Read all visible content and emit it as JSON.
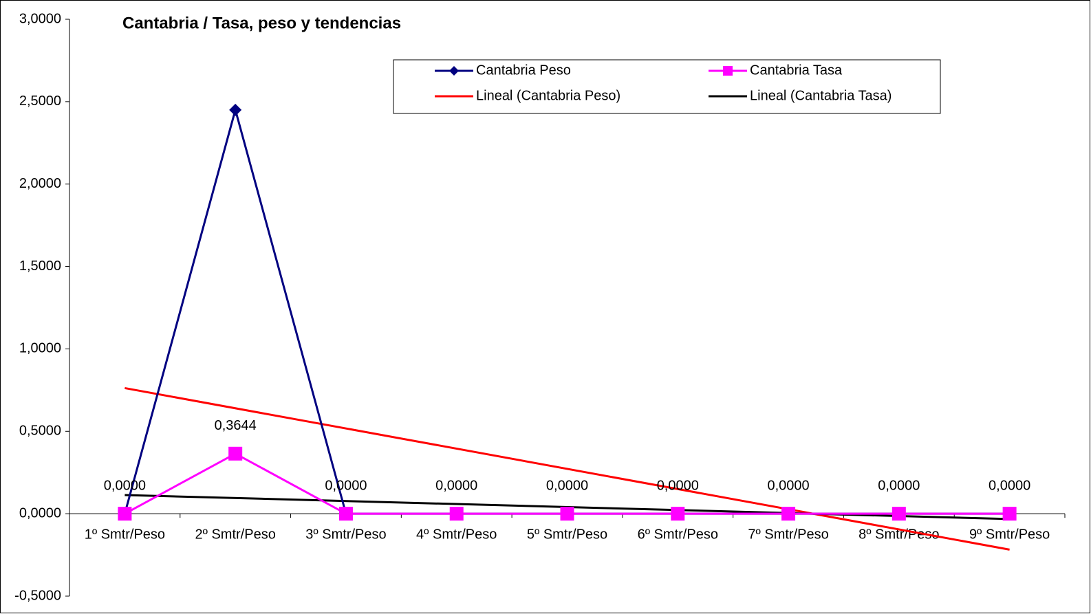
{
  "chart_data": {
    "type": "line",
    "title": "Cantabria  / Tasa, peso y tendencias",
    "categories": [
      "1º Smtr/Peso",
      "2º Smtr/Peso",
      "3º Smtr/Peso",
      "4º Smtr/Peso",
      "5º Smtr/Peso",
      "6º Smtr/Peso",
      "7º Smtr/Peso",
      "8º Smtr/Peso",
      "9º Smtr/Peso"
    ],
    "series": [
      {
        "name": "Cantabria Peso",
        "color": "#000080",
        "marker": "diamond",
        "values": [
          0,
          2.45,
          0,
          0,
          0,
          0,
          0,
          0,
          0
        ]
      },
      {
        "name": "Cantabria Tasa",
        "color": "#ff00ff",
        "marker": "square",
        "values": [
          0,
          0.3644,
          0,
          0,
          0,
          0,
          0,
          0,
          0
        ],
        "value_labels": [
          "0,0000",
          "0,3644",
          "0,0000",
          "0,0000",
          "0,0000",
          "0,0000",
          "0,0000",
          "0,0000",
          "0,0000"
        ]
      }
    ],
    "trendlines": [
      {
        "name": "Lineal (Cantabria Peso)",
        "color": "#ff0000",
        "of": 0
      },
      {
        "name": "Lineal (Cantabria Tasa)",
        "color": "#000000",
        "of": 1
      }
    ],
    "ylim": [
      -0.5,
      3
    ],
    "yticks": [
      {
        "value": -0.5,
        "label": "-0,5000"
      },
      {
        "value": 0,
        "label": "0,0000"
      },
      {
        "value": 0.5,
        "label": "0,5000"
      },
      {
        "value": 1,
        "label": "1,0000"
      },
      {
        "value": 1.5,
        "label": "1,5000"
      },
      {
        "value": 2,
        "label": "2,0000"
      },
      {
        "value": 2.5,
        "label": "2,5000"
      },
      {
        "value": 3,
        "label": "3,0000"
      }
    ]
  }
}
